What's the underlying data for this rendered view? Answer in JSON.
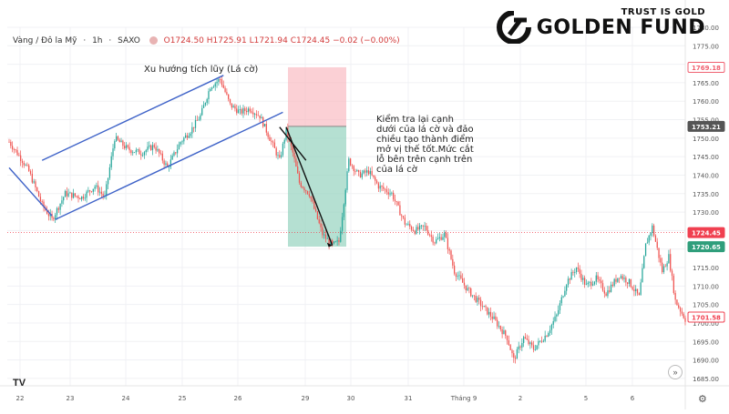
{
  "header": {
    "symbol": "Vàng / Đô la Mỹ",
    "interval": "1h",
    "source": "SAXO",
    "ohlc": "O1724.50 H1725.91 L1721.94 C1724.45 −0.02 (−0.00%)"
  },
  "brand": {
    "tagline": "TRUST IS GOLD",
    "name": "GOLDEN FUND"
  },
  "annotations": {
    "flag_label": "Xu hướng tích lũy (Lá cờ)",
    "trade_note": [
      "Kiểm tra lại cạnh",
      "dưới của lá cờ và đảo",
      "chiều tạo thành điểm",
      "mở vị thế tốt.Mức cắt",
      "lỗ bên trên cạnh trên",
      "của lá cờ"
    ]
  },
  "icons": {
    "logo": "tradingview-logo-icon",
    "settings": "gear-icon",
    "scroll": "scroll-right-icon"
  },
  "chart_data": {
    "type": "candlestick",
    "ylim": [
      1683,
      1780
    ],
    "y_ticks": [
      1685,
      1690,
      1695,
      1700,
      1705,
      1710,
      1715,
      1720,
      1725,
      1730,
      1735,
      1740,
      1745,
      1750,
      1755,
      1760,
      1765,
      1770,
      1775,
      1780
    ],
    "x_ticks": [
      "22",
      "23",
      "24",
      "25",
      "26",
      "29",
      "30",
      "31",
      "Tháng 9",
      "2",
      "5",
      "6"
    ],
    "price_labels": [
      {
        "value": 1769.18,
        "text": "1769.18",
        "color": "#f06070",
        "fill": "#ffffff"
      },
      {
        "value": 1753.21,
        "text": "1753.21",
        "color": "#555555",
        "fill": "#555555"
      },
      {
        "value": 1724.45,
        "text": "1724.45",
        "color": "#f04050",
        "fill": "#f04050"
      },
      {
        "value": 1720.65,
        "text": "1720.65",
        "color": "#2f9e7b",
        "fill": "#2f9e7b"
      },
      {
        "value": 1701.58,
        "text": "1701.58",
        "color": "#f04050",
        "fill": "#ffffff"
      }
    ],
    "current_price": 1724.45,
    "position": {
      "entry": 1753.21,
      "stop": 1769.18,
      "target": 1720.65
    },
    "waypoints": [
      [
        0,
        1749
      ],
      [
        8,
        1744
      ],
      [
        12,
        1741
      ],
      [
        20,
        1732
      ],
      [
        26,
        1728
      ],
      [
        34,
        1735
      ],
      [
        44,
        1734
      ],
      [
        52,
        1737
      ],
      [
        58,
        1734
      ],
      [
        64,
        1750
      ],
      [
        72,
        1747
      ],
      [
        80,
        1746
      ],
      [
        88,
        1748
      ],
      [
        96,
        1742
      ],
      [
        104,
        1749
      ],
      [
        110,
        1752
      ],
      [
        116,
        1756
      ],
      [
        122,
        1764
      ],
      [
        128,
        1766
      ],
      [
        134,
        1759
      ],
      [
        140,
        1757
      ],
      [
        146,
        1758
      ],
      [
        152,
        1756
      ],
      [
        158,
        1750
      ],
      [
        164,
        1744
      ],
      [
        168,
        1752
      ],
      [
        172,
        1746
      ],
      [
        176,
        1738
      ],
      [
        182,
        1735
      ],
      [
        190,
        1724
      ],
      [
        196,
        1721
      ],
      [
        200,
        1722
      ],
      [
        206,
        1744
      ],
      [
        212,
        1740
      ],
      [
        218,
        1741
      ],
      [
        224,
        1737
      ],
      [
        232,
        1735
      ],
      [
        240,
        1727
      ],
      [
        246,
        1725
      ],
      [
        252,
        1726
      ],
      [
        258,
        1722
      ],
      [
        264,
        1724
      ],
      [
        270,
        1714
      ],
      [
        278,
        1709
      ],
      [
        286,
        1705
      ],
      [
        294,
        1701
      ],
      [
        302,
        1696
      ],
      [
        306,
        1690
      ],
      [
        312,
        1696
      ],
      [
        318,
        1693
      ],
      [
        326,
        1697
      ],
      [
        332,
        1702
      ],
      [
        338,
        1711
      ],
      [
        344,
        1715
      ],
      [
        350,
        1710
      ],
      [
        356,
        1712
      ],
      [
        362,
        1708
      ],
      [
        370,
        1713
      ],
      [
        376,
        1711
      ],
      [
        382,
        1707
      ],
      [
        386,
        1721
      ],
      [
        390,
        1726
      ],
      [
        396,
        1714
      ],
      [
        400,
        1718
      ],
      [
        404,
        1706
      ],
      [
        410,
        1701
      ]
    ],
    "trendlines": [
      {
        "points": [
          [
            20,
            1744
          ],
          [
            130,
            1767
          ]
        ],
        "color": "#3f63c8"
      },
      {
        "points": [
          [
            28,
            1728
          ],
          [
            166,
            1757
          ]
        ],
        "color": "#3f63c8"
      },
      {
        "points": [
          [
            0,
            1742
          ],
          [
            26,
            1729
          ]
        ],
        "color": "#3f63c8"
      },
      {
        "points": [
          [
            164,
            1753
          ],
          [
            180,
            1744
          ]
        ],
        "color": "#111111"
      },
      {
        "points": [
          [
            168,
            1753
          ],
          [
            196,
            1721
          ]
        ],
        "color": "#111111"
      }
    ]
  }
}
